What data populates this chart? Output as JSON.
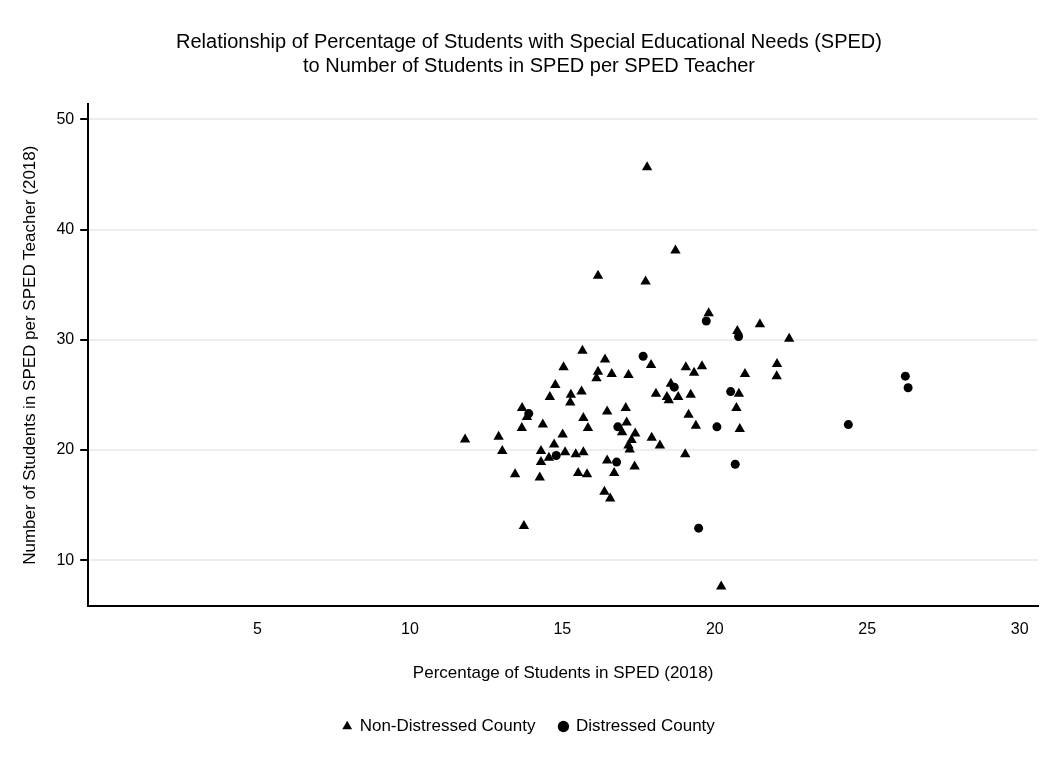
{
  "chart_data": {
    "type": "scatter",
    "title": "Relationship of Percentage of Students with Special Educational Needs (SPED)\nto Number of Students in SPED per SPED Teacher",
    "xlabel": "Percentage of Students in SPED (2018)",
    "ylabel": "Number of Students in SPED per SPED Teacher (2018)",
    "xlim": [
      -0.55,
      30.6
    ],
    "xticks": [
      5,
      10,
      15,
      20,
      25,
      30
    ],
    "ylim": [
      5.8,
      51.4
    ],
    "yticks": [
      10,
      20,
      30,
      40,
      50
    ],
    "grid": "y",
    "legend": "bottom",
    "series": [
      {
        "name": "Non-Distressed County",
        "color": "#000000",
        "marker": "triangle",
        "x": [
          15.66,
          16.4,
          15.04,
          16.17,
          16.12,
          16.62,
          17.17,
          14.77,
          14.59,
          15.28,
          15.26,
          15.63,
          13.68,
          13.84,
          16.47,
          17.08,
          14.36,
          13.67,
          15.69,
          15.84,
          17.11,
          16.96,
          17.39,
          17.27,
          17.17,
          17.21,
          15.01,
          14.73,
          11.81,
          12.91,
          13.03,
          14.3,
          14.56,
          15.09,
          15.44,
          15.69,
          14.3,
          16.47,
          16.7,
          17.37,
          13.45,
          14.26,
          15.52,
          15.81,
          16.38,
          16.57,
          13.74,
          17.91,
          19.05,
          19.32,
          19.58,
          20.99,
          22.04,
          22.03,
          18.56,
          18.07,
          18.43,
          18.49,
          18.8,
          19.21,
          20.79,
          20.71,
          19.14,
          19.38,
          20.82,
          17.93,
          18.2,
          19.03,
          20.21,
          17.78,
          18.71,
          17.73,
          19.8,
          21.48,
          20.74,
          22.44,
          16.17
        ],
        "values": [
          29.0,
          28.2,
          27.5,
          27.1,
          26.5,
          26.9,
          26.8,
          25.9,
          24.8,
          25.0,
          24.3,
          25.3,
          23.8,
          23.0,
          23.5,
          23.8,
          22.3,
          22.0,
          22.9,
          22.0,
          22.5,
          21.6,
          21.5,
          20.9,
          20.4,
          20.05,
          21.4,
          20.5,
          20.95,
          21.2,
          19.9,
          19.9,
          19.3,
          19.8,
          19.6,
          19.8,
          18.9,
          19.05,
          17.9,
          18.5,
          17.8,
          17.5,
          17.9,
          17.8,
          16.2,
          15.6,
          13.1,
          27.7,
          27.5,
          27.0,
          27.6,
          26.9,
          27.8,
          26.7,
          26.0,
          25.1,
          24.8,
          24.5,
          24.8,
          25.0,
          25.1,
          23.8,
          23.2,
          22.2,
          21.9,
          21.1,
          20.4,
          19.6,
          7.6,
          45.65,
          38.1,
          35.3,
          32.4,
          31.4,
          30.8,
          30.1,
          35.8
        ]
      },
      {
        "name": "Distressed County",
        "color": "#000000",
        "marker": "circle",
        "x": [
          13.9,
          16.82,
          14.8,
          16.78,
          17.65,
          18.67,
          20.52,
          20.07,
          20.67,
          19.47,
          19.72,
          20.78,
          26.25,
          26.34,
          24.38
        ],
        "values": [
          23.3,
          22.1,
          19.5,
          18.9,
          28.5,
          25.7,
          25.3,
          22.1,
          18.7,
          12.9,
          31.7,
          30.3,
          26.7,
          25.65,
          22.3
        ]
      }
    ]
  }
}
